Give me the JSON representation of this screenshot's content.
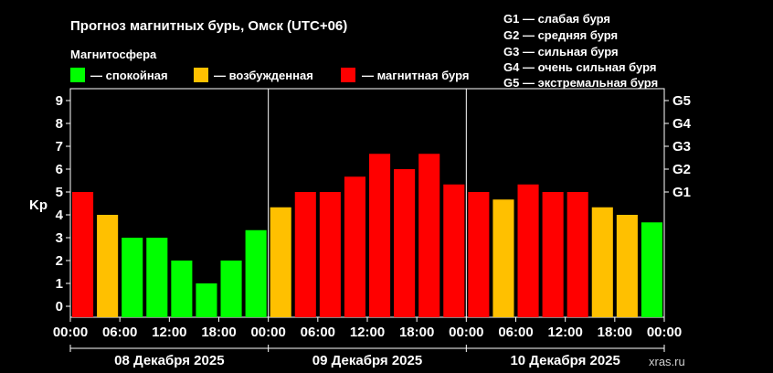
{
  "title": "Прогноз магнитных бурь, Омск (UTC+06)",
  "legend": {
    "heading": "Магнитосфера",
    "items": [
      {
        "label": "— спокойная",
        "color": "#00ff00"
      },
      {
        "label": "— возбужденная",
        "color": "#ffc000"
      },
      {
        "label": "— магнитная буря",
        "color": "#ff0000"
      }
    ]
  },
  "g_scale": [
    "G1 — слабая буря",
    "G2 — средняя буря",
    "G3 — сильная буря",
    "G4 — очень сильная буря",
    "G5 — экстремальная буря"
  ],
  "watermark": "xras.ru",
  "chart_data": {
    "type": "bar",
    "ylabel": "Kp",
    "ylim": [
      0,
      9
    ],
    "yticks": [
      "0",
      "1",
      "2",
      "3",
      "4",
      "5",
      "6",
      "7",
      "8",
      "9"
    ],
    "right_ticks": [
      {
        "label": "G1",
        "value": 5
      },
      {
        "label": "G2",
        "value": 6
      },
      {
        "label": "G3",
        "value": 7
      },
      {
        "label": "G4",
        "value": 8
      },
      {
        "label": "G5",
        "value": 9
      }
    ],
    "xtick_labels": [
      "00:00",
      "06:00",
      "12:00",
      "18:00",
      "00:00",
      "06:00",
      "12:00",
      "18:00",
      "00:00",
      "06:00",
      "12:00",
      "18:00",
      "00:00"
    ],
    "days": [
      "08 Декабря 2025",
      "09 Декабря 2025",
      "10 Декабря 2025"
    ],
    "values": [
      5,
      4,
      3,
      3,
      2,
      1,
      2,
      3.33,
      4.33,
      5,
      5,
      5.67,
      6.67,
      6,
      6.67,
      5.33,
      5,
      4.67,
      5.33,
      5,
      5,
      4.33,
      4,
      3.67
    ],
    "colors": {
      "quiet": "#00ff00",
      "active": "#ffc000",
      "storm": "#ff0000"
    },
    "thresholds": {
      "active": 4,
      "storm": 5
    }
  }
}
